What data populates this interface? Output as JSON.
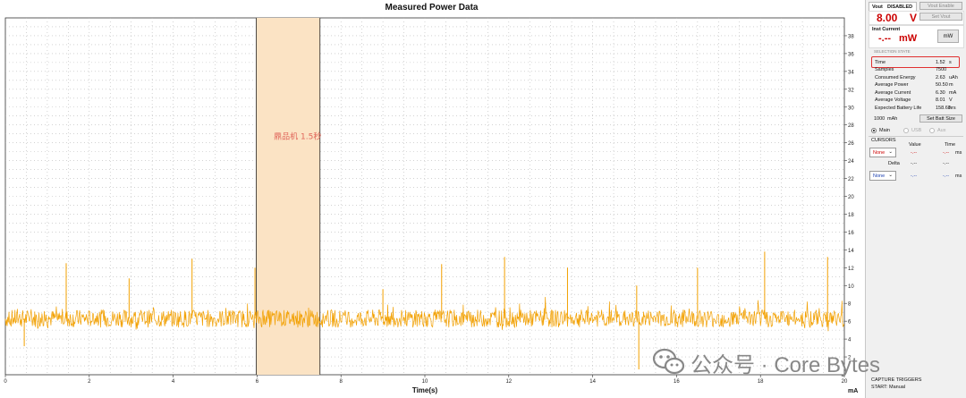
{
  "chart_title": "Measured Power Data",
  "chart_data": {
    "type": "line",
    "title": "Measured Power Data",
    "xlabel": "Time(s)",
    "ylabel": "mA",
    "xlim": [
      0,
      20
    ],
    "ylim": [
      0,
      40
    ],
    "x_ticks": [
      0,
      2,
      4,
      6,
      8,
      10,
      12,
      14,
      16,
      18,
      20
    ],
    "y_ticks": [
      2,
      4,
      6,
      8,
      10,
      12,
      14,
      16,
      18,
      20,
      22,
      24,
      26,
      28,
      30,
      32,
      34,
      36,
      38
    ],
    "grid": true,
    "series": [
      {
        "color": "#f2a000",
        "baseline": 6.3,
        "spikes": [
          {
            "x": 0.45,
            "y": 3.2
          },
          {
            "x": 1.45,
            "y": 12.5
          },
          {
            "x": 2.95,
            "y": 10.8
          },
          {
            "x": 4.45,
            "y": 13.0
          },
          {
            "x": 5.95,
            "y": 12.0
          },
          {
            "x": 9.0,
            "y": 9.6
          },
          {
            "x": 10.4,
            "y": 12.4
          },
          {
            "x": 11.9,
            "y": 13.2
          },
          {
            "x": 13.4,
            "y": 12.0
          },
          {
            "x": 15.05,
            "y": 10.0
          },
          {
            "x": 15.1,
            "y": 0.6
          },
          {
            "x": 16.5,
            "y": 12.0
          },
          {
            "x": 18.1,
            "y": 13.8
          },
          {
            "x": 19.6,
            "y": 13.2
          }
        ]
      }
    ],
    "selection": {
      "x0": 5.98,
      "x1": 7.5,
      "fill": "#fbe3c4"
    },
    "annotations": [
      {
        "text": "鼎品机 1.5秒",
        "x": 6.4,
        "y": 26.4,
        "color": "#e0665a"
      }
    ]
  },
  "panel": {
    "vout_label": "Vout",
    "vout_status": "DISABLED",
    "vout_enable_button": "Vout Enable",
    "vout_value": "8.00",
    "vout_unit": "V",
    "set_vout_button": "Set Vout",
    "inst_current_label": "Inst Current",
    "inst_value": "-.--",
    "inst_unit": "mW",
    "unit_button": "mW",
    "selection_state_label": "SELECTION STATE",
    "time_label": "Time",
    "time_value": "1.52",
    "time_unit": "s",
    "stats": [
      {
        "label": "Samples",
        "value": "7500",
        "unit": ""
      },
      {
        "label": "Consumed Energy",
        "value": "2.63",
        "unit": "uAh"
      },
      {
        "label": "Average Power",
        "value": "50.50",
        "unit": "m"
      },
      {
        "label": "Average Current",
        "value": "6.30",
        "unit": "mA"
      },
      {
        "label": "Average Voltage",
        "value": "8.01",
        "unit": "V"
      },
      {
        "label": "Expected Battery Life",
        "value": "158.68",
        "unit": "hrs"
      }
    ],
    "battery_capacity": "1000",
    "battery_unit": "mAh",
    "set_batt_button": "Set Batt Size",
    "radio_main": "Main",
    "radio_usb": "USB",
    "radio_aux": "Aux",
    "cursors_label": "CURSORS",
    "value_header": "Value",
    "time_header": "Time",
    "cursor1_select": "None",
    "cursor1_value": "-.--",
    "cursor1_time": "-.--",
    "cursor1_time_unit": "ms",
    "delta_label": "Delta",
    "delta_value": "-.--",
    "delta_time": "-.--",
    "cursor2_select": "None",
    "cursor2_value": "-.--",
    "cursor2_time": "-.--",
    "cursor2_time_unit": "ms",
    "capture_triggers_label": "CAPTURE TRIGGERS",
    "start_label": "START:",
    "start_value": "Manual"
  },
  "watermark": "公众号 · Core Bytes",
  "colors": {
    "trace": "#f2a000",
    "selection": "#fbe3c4",
    "highlight_box": "#e03030",
    "vout_red": "#cc0000"
  }
}
